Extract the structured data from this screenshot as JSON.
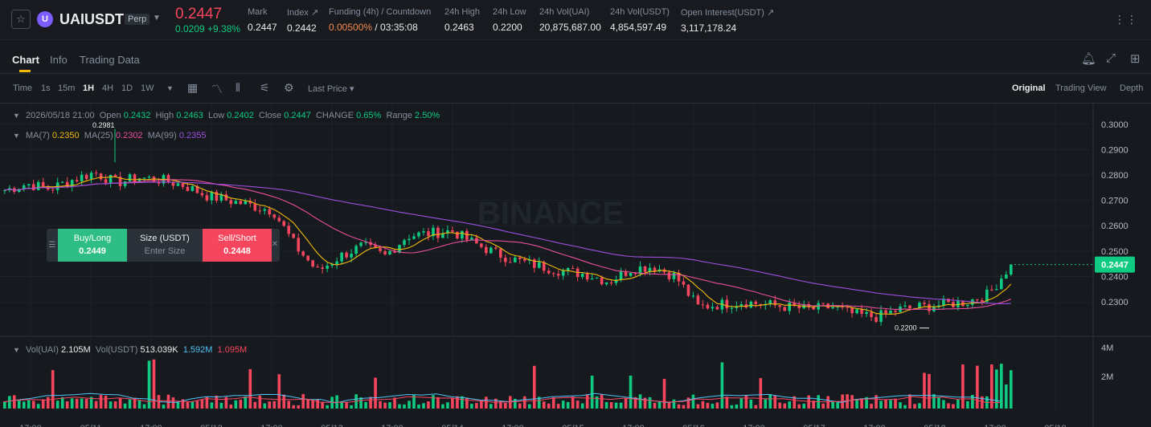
{
  "ticker": {
    "star": "☆",
    "coin_letter": "U",
    "symbol": "UAIUSDT",
    "badge": "Perp",
    "price": "0.2447",
    "change": "0.0209 +9.38%",
    "stats": [
      {
        "label": "Mark",
        "value": "0.2447"
      },
      {
        "label": "Index ↗",
        "value": "0.2442"
      },
      {
        "label": "Funding (4h) / Countdown",
        "value_a": "0.00500%",
        "value_b": " / 03:35:08"
      },
      {
        "label": "24h High",
        "value": "0.2463"
      },
      {
        "label": "24h Low",
        "value": "0.2200"
      },
      {
        "label": "24h Vol(UAI)",
        "value": "20,875,687.00"
      },
      {
        "label": "24h Vol(USDT)",
        "value": "4,854,597.49"
      },
      {
        "label": "Open Interest(USDT) ↗",
        "value": "3,117,178.24"
      }
    ]
  },
  "tabs": [
    "Chart",
    "Info",
    "Trading Data"
  ],
  "toolbar": {
    "intervals": [
      "Time",
      "1s",
      "15m",
      "1H",
      "4H",
      "1D",
      "1W"
    ],
    "price_type": "Last Price ▾",
    "views": [
      "Original",
      "Trading View",
      "Depth"
    ]
  },
  "legend": {
    "date": "2026/05/18 21:00",
    "open_label": "Open",
    "open": "0.2432",
    "high_label": "High",
    "high": "0.2463",
    "low_label": "Low",
    "low": "0.2402",
    "close_label": "Close",
    "close": "0.2447",
    "change_label": "CHANGE",
    "change": "0.65%",
    "range_label": "Range",
    "range": "2.50%",
    "ma7_label": "MA(7)",
    "ma7": "0.2350",
    "ma25_label": "MA(25)",
    "ma25": "0.2302",
    "ma99_label": "MA(99)",
    "ma99": "0.2355",
    "vol_uai_label": "Vol(UAI)",
    "vol_uai": "2.105M",
    "vol_usdt_label": "Vol(USDT)",
    "vol_usdt": "513.039K",
    "vol_ma1": "1.592M",
    "vol_ma2": "1.095M"
  },
  "trade": {
    "buy_label": "Buy/Long",
    "buy_price": "0.2449",
    "size_label": "Size (USDT)",
    "size_placeholder": "Enter Size",
    "sell_label": "Sell/Short",
    "sell_price": "0.2448"
  },
  "watermark": "BINANCE",
  "colors": {
    "up": "#0ecb81",
    "down": "#f6465d",
    "ma7": "#f0b90b",
    "ma25": "#e84e9c",
    "ma99": "#9d4edd"
  },
  "chart_data": {
    "type": "candlestick",
    "interval": "1H",
    "y_ticks": [
      "0.3000",
      "0.2900",
      "0.2800",
      "0.2700",
      "0.2600",
      "0.2500",
      "0.2400",
      "0.2300"
    ],
    "ylim": [
      0.218,
      0.305
    ],
    "vol_ticks": [
      "4M",
      "2M"
    ],
    "x_ticks": [
      "17:00",
      "05/11",
      "17:00",
      "05/12",
      "17:00",
      "05/13",
      "17:00",
      "05/14",
      "17:00",
      "05/15",
      "17:00",
      "05/16",
      "17:00",
      "05/17",
      "17:00",
      "05/18",
      "17:00",
      "05/19"
    ],
    "last_price": "0.2447",
    "annotations": [
      {
        "text": "0.2981",
        "value": 0.2981
      },
      {
        "text": "0.2200",
        "value": 0.22
      }
    ],
    "path_closes": [
      0.274,
      0.2765,
      0.2745,
      0.278,
      0.281,
      0.277,
      0.279,
      0.278,
      0.276,
      0.272,
      0.27,
      0.268,
      0.266,
      0.252,
      0.242,
      0.248,
      0.252,
      0.248,
      0.256,
      0.257,
      0.258,
      0.253,
      0.249,
      0.246,
      0.244,
      0.242,
      0.241,
      0.238,
      0.243,
      0.244,
      0.24,
      0.228,
      0.229,
      0.23,
      0.229,
      0.228,
      0.227,
      0.228,
      0.225,
      0.224,
      0.227,
      0.228,
      0.229,
      0.23,
      0.233,
      0.2447
    ]
  }
}
